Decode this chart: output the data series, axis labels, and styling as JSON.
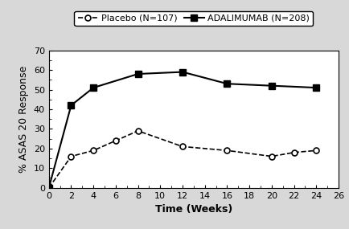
{
  "placebo_x": [
    0,
    2,
    4,
    6,
    8,
    12,
    16,
    20,
    22,
    24
  ],
  "placebo_y": [
    0,
    16,
    19,
    24,
    29,
    21,
    19,
    16,
    18,
    19
  ],
  "adalimumab_x": [
    0,
    2,
    4,
    8,
    12,
    16,
    20,
    24
  ],
  "adalimumab_y": [
    0,
    42,
    51,
    58,
    59,
    53,
    52,
    51
  ],
  "placebo_label": "Placebo (N=107)",
  "adalimumab_label": "ADALIMUMAB (N=208)",
  "xlabel": "Time (Weeks)",
  "ylabel": "% ASAS 20 Response",
  "xlim": [
    0,
    26
  ],
  "ylim": [
    0,
    70
  ],
  "yticks": [
    0,
    10,
    20,
    30,
    40,
    50,
    60,
    70
  ],
  "xticks": [
    0,
    2,
    4,
    6,
    8,
    10,
    12,
    14,
    16,
    18,
    20,
    22,
    24,
    26
  ],
  "background_color": "#d8d8d8",
  "plot_bg_color": "#ffffff",
  "line_color": "#000000",
  "label_fontsize": 9,
  "tick_fontsize": 8,
  "legend_fontsize": 8
}
